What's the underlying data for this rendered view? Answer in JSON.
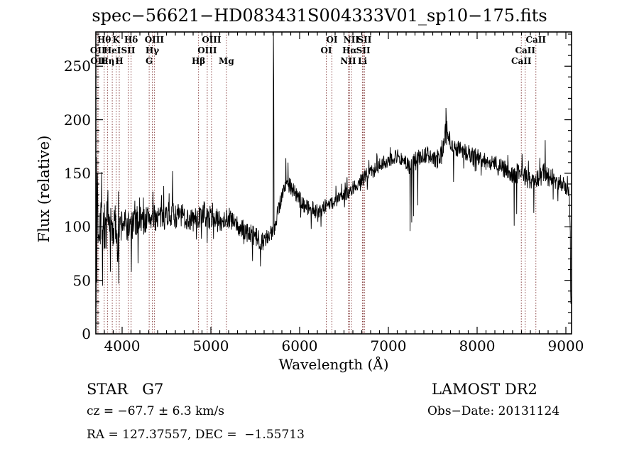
{
  "title": "spec−56621−HD083431S004333V01_sp10−175.fits",
  "footer": {
    "class_label": "STAR   G7",
    "survey": "LAMOST DR2",
    "cz": "cz = −67.7 ± 6.3 km/s",
    "obs_date": "Obs−Date: 20131124",
    "radec": "RA = 127.37557, DEC =  −1.55713"
  },
  "chart_data": {
    "type": "line",
    "title": "spec−56621−HD083431S004333V01_sp10−175.fits",
    "xlabel": "Wavelength (Å)",
    "ylabel": "Flux (relative)",
    "xlim": [
      3704,
      9064
    ],
    "ylim": [
      0,
      282
    ],
    "xticks": [
      4000,
      5000,
      6000,
      7000,
      8000,
      9000
    ],
    "yticks": [
      0,
      50,
      100,
      150,
      200,
      250
    ],
    "x_minor_step": 100,
    "y_minor_step": 10,
    "grid": false,
    "legend": "none",
    "line_color": "#000000",
    "marker_line_color": "#8a4444",
    "spectral_lines": [
      {
        "label": "Hθ",
        "wavelength": 3798,
        "row": 1
      },
      {
        "label": "K",
        "wavelength": 3933,
        "row": 1
      },
      {
        "label": "Hδ",
        "wavelength": 4101,
        "row": 1
      },
      {
        "label": "OIII",
        "wavelength": 4363,
        "row": 1
      },
      {
        "label": "OIII",
        "wavelength": 5007,
        "row": 1
      },
      {
        "label": "OI",
        "wavelength": 6364,
        "row": 1
      },
      {
        "label": "NII",
        "wavelength": 6583,
        "row": 1
      },
      {
        "label": "SII",
        "wavelength": 6731,
        "row": 1
      },
      {
        "label": "CaII",
        "wavelength": 8662,
        "row": 1
      },
      {
        "label": "OII",
        "wavelength": 3726,
        "row": 2
      },
      {
        "label": "HeI",
        "wavelength": 3889,
        "row": 2
      },
      {
        "label": "SII",
        "wavelength": 4068,
        "row": 2
      },
      {
        "label": "Hγ",
        "wavelength": 4340,
        "row": 2
      },
      {
        "label": "OIII",
        "wavelength": 4959,
        "row": 2
      },
      {
        "label": "OI",
        "wavelength": 6300,
        "row": 2
      },
      {
        "label": "Hα",
        "wavelength": 6563,
        "row": 2
      },
      {
        "label": "SII",
        "wavelength": 6717,
        "row": 2
      },
      {
        "label": "CaII",
        "wavelength": 8542,
        "row": 2
      },
      {
        "label": "OII",
        "wavelength": 3729,
        "row": 3
      },
      {
        "label": "Hη",
        "wavelength": 3835,
        "row": 3
      },
      {
        "label": "H",
        "wavelength": 3968,
        "row": 3
      },
      {
        "label": "G",
        "wavelength": 4305,
        "row": 3
      },
      {
        "label": "Hβ",
        "wavelength": 4861,
        "row": 3
      },
      {
        "label": "Mg",
        "wavelength": 5175,
        "row": 3
      },
      {
        "label": "NII",
        "wavelength": 6548,
        "row": 3
      },
      {
        "label": "Li",
        "wavelength": 6708,
        "row": 3
      },
      {
        "label": "CaII",
        "wavelength": 8498,
        "row": 3
      }
    ],
    "continuum": [
      [
        3704,
        100
      ],
      [
        3710,
        118
      ],
      [
        3730,
        105
      ],
      [
        3760,
        112
      ],
      [
        3800,
        98
      ],
      [
        3840,
        101
      ],
      [
        3880,
        96
      ],
      [
        3920,
        101
      ],
      [
        3960,
        93
      ],
      [
        4000,
        105
      ],
      [
        4050,
        101
      ],
      [
        4100,
        99
      ],
      [
        4150,
        104
      ],
      [
        4200,
        108
      ],
      [
        4250,
        105
      ],
      [
        4300,
        110
      ],
      [
        4350,
        107
      ],
      [
        4400,
        110
      ],
      [
        4450,
        108
      ],
      [
        4500,
        112
      ],
      [
        4550,
        113
      ],
      [
        4600,
        110
      ],
      [
        4650,
        111
      ],
      [
        4700,
        109
      ],
      [
        4750,
        107
      ],
      [
        4800,
        106
      ],
      [
        4850,
        108
      ],
      [
        4900,
        110
      ],
      [
        4950,
        108
      ],
      [
        5000,
        109
      ],
      [
        5050,
        107
      ],
      [
        5100,
        105
      ],
      [
        5150,
        108
      ],
      [
        5200,
        108
      ],
      [
        5250,
        104
      ],
      [
        5300,
        100
      ],
      [
        5350,
        97
      ],
      [
        5400,
        95
      ],
      [
        5450,
        93
      ],
      [
        5500,
        90
      ],
      [
        5550,
        88
      ],
      [
        5600,
        87
      ],
      [
        5650,
        89
      ],
      [
        5680,
        93
      ],
      [
        5720,
        102
      ],
      [
        5760,
        117
      ],
      [
        5800,
        130
      ],
      [
        5840,
        139
      ],
      [
        5880,
        140
      ],
      [
        5920,
        136
      ],
      [
        5960,
        130
      ],
      [
        6000,
        125
      ],
      [
        6050,
        121
      ],
      [
        6100,
        118
      ],
      [
        6150,
        116
      ],
      [
        6200,
        115
      ],
      [
        6250,
        117
      ],
      [
        6300,
        120
      ],
      [
        6350,
        122
      ],
      [
        6400,
        124
      ],
      [
        6450,
        127
      ],
      [
        6500,
        130
      ],
      [
        6550,
        133
      ],
      [
        6600,
        137
      ],
      [
        6650,
        140
      ],
      [
        6700,
        143
      ],
      [
        6750,
        148
      ],
      [
        6800,
        151
      ],
      [
        6850,
        154
      ],
      [
        6900,
        157
      ],
      [
        6950,
        160
      ],
      [
        7000,
        163
      ],
      [
        7050,
        165
      ],
      [
        7100,
        166
      ],
      [
        7150,
        164
      ],
      [
        7200,
        159
      ],
      [
        7250,
        155
      ],
      [
        7300,
        161
      ],
      [
        7350,
        165
      ],
      [
        7400,
        167
      ],
      [
        7450,
        167
      ],
      [
        7500,
        164
      ],
      [
        7550,
        161
      ],
      [
        7600,
        169
      ],
      [
        7630,
        179
      ],
      [
        7650,
        196
      ],
      [
        7670,
        186
      ],
      [
        7700,
        179
      ],
      [
        7750,
        174
      ],
      [
        7800,
        173
      ],
      [
        7850,
        171
      ],
      [
        7900,
        169
      ],
      [
        7950,
        167
      ],
      [
        8000,
        166
      ],
      [
        8050,
        163
      ],
      [
        8100,
        161
      ],
      [
        8150,
        160
      ],
      [
        8200,
        159
      ],
      [
        8250,
        157
      ],
      [
        8300,
        155
      ],
      [
        8350,
        152
      ],
      [
        8400,
        148
      ],
      [
        8450,
        150
      ],
      [
        8500,
        149
      ],
      [
        8550,
        147
      ],
      [
        8600,
        144
      ],
      [
        8650,
        142
      ],
      [
        8700,
        147
      ],
      [
        8750,
        151
      ],
      [
        8800,
        147
      ],
      [
        8850,
        144
      ],
      [
        8900,
        142
      ],
      [
        8950,
        140
      ],
      [
        9000,
        138
      ],
      [
        9030,
        132
      ],
      [
        9045,
        122
      ],
      [
        9052,
        45
      ],
      [
        9058,
        30
      ]
    ],
    "noise_profile": [
      [
        3704,
        36
      ],
      [
        3750,
        32
      ],
      [
        3800,
        28
      ],
      [
        3850,
        24
      ],
      [
        3900,
        22
      ],
      [
        3950,
        20
      ],
      [
        4000,
        17
      ],
      [
        4100,
        15
      ],
      [
        4300,
        13
      ],
      [
        4600,
        12
      ],
      [
        5000,
        11
      ],
      [
        5400,
        10
      ],
      [
        5700,
        9
      ],
      [
        6000,
        8
      ],
      [
        6300,
        7
      ],
      [
        6600,
        7
      ],
      [
        7000,
        7
      ],
      [
        7300,
        9
      ],
      [
        7600,
        8
      ],
      [
        8000,
        8
      ],
      [
        8300,
        9
      ],
      [
        8600,
        10
      ],
      [
        8800,
        9
      ],
      [
        9000,
        8
      ],
      [
        9064,
        6
      ]
    ],
    "spikes": [
      [
        3706,
        178
      ],
      [
        3708,
        25
      ],
      [
        3712,
        165
      ],
      [
        3716,
        48
      ],
      [
        3722,
        150
      ],
      [
        3780,
        45
      ],
      [
        3870,
        58
      ],
      [
        3960,
        47
      ],
      [
        4105,
        58
      ],
      [
        4180,
        66
      ],
      [
        4470,
        138
      ],
      [
        4570,
        152
      ],
      [
        5470,
        68
      ],
      [
        5560,
        63
      ],
      [
        5705,
        282
      ],
      [
        5709,
        230
      ],
      [
        5845,
        164
      ],
      [
        5868,
        160
      ],
      [
        6130,
        98
      ],
      [
        6240,
        100
      ],
      [
        7245,
        96
      ],
      [
        7262,
        104
      ],
      [
        7285,
        110
      ],
      [
        7332,
        120
      ],
      [
        7648,
        211
      ],
      [
        7658,
        199
      ],
      [
        7735,
        142
      ],
      [
        8418,
        101
      ],
      [
        8447,
        112
      ],
      [
        8640,
        113
      ],
      [
        8768,
        181
      ],
      [
        9040,
        128
      ],
      [
        9048,
        95
      ],
      [
        9052,
        40
      ],
      [
        9058,
        28
      ]
    ]
  }
}
